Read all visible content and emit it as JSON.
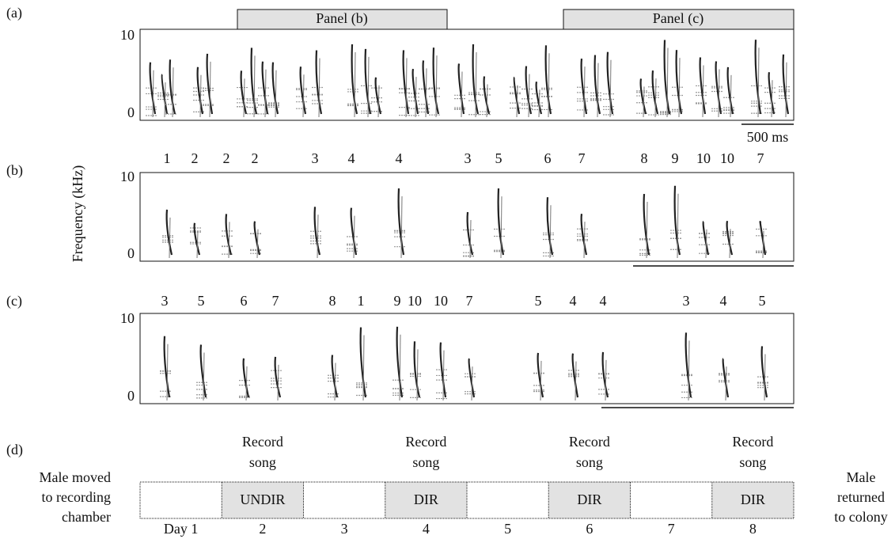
{
  "panel_a": {
    "label": "(a)",
    "inset_labels": [
      "Panel (b)",
      "Panel (c)"
    ],
    "y_axis_labels": [
      "10",
      "0"
    ],
    "scale_bar": "500 ms"
  },
  "y_axis_title": "Frequency (kHz)",
  "panel_b": {
    "label": "(b)",
    "syllables": [
      "1",
      "2",
      "2",
      "2",
      "3",
      "4",
      "4",
      "3",
      "5",
      "6",
      "7",
      "8",
      "9",
      "10",
      "10",
      "7"
    ],
    "y_axis_labels": [
      "10",
      "0"
    ]
  },
  "panel_c": {
    "label": "(c)",
    "syllables": [
      "3",
      "5",
      "6",
      "7",
      "8",
      "1",
      "9",
      "10",
      "10",
      "7",
      "5",
      "4",
      "4",
      "3",
      "4",
      "5"
    ],
    "y_axis_labels": [
      "10",
      "0"
    ]
  },
  "panel_d": {
    "label": "(d)",
    "left_note": [
      "Male moved",
      "to recording",
      "chamber"
    ],
    "right_note": [
      "Male",
      "returned",
      "to colony"
    ],
    "days": [
      "Day 1",
      "2",
      "3",
      "4",
      "5",
      "6",
      "7",
      "8"
    ],
    "sessions": [
      {
        "above": [
          "Record",
          "song"
        ],
        "condition": "UNDIR"
      },
      {
        "above": [
          "Record",
          "song"
        ],
        "condition": "DIR"
      },
      {
        "above": [
          "Record",
          "song"
        ],
        "condition": "DIR"
      },
      {
        "above": [
          "Record",
          "song"
        ],
        "condition": "DIR"
      }
    ]
  }
}
